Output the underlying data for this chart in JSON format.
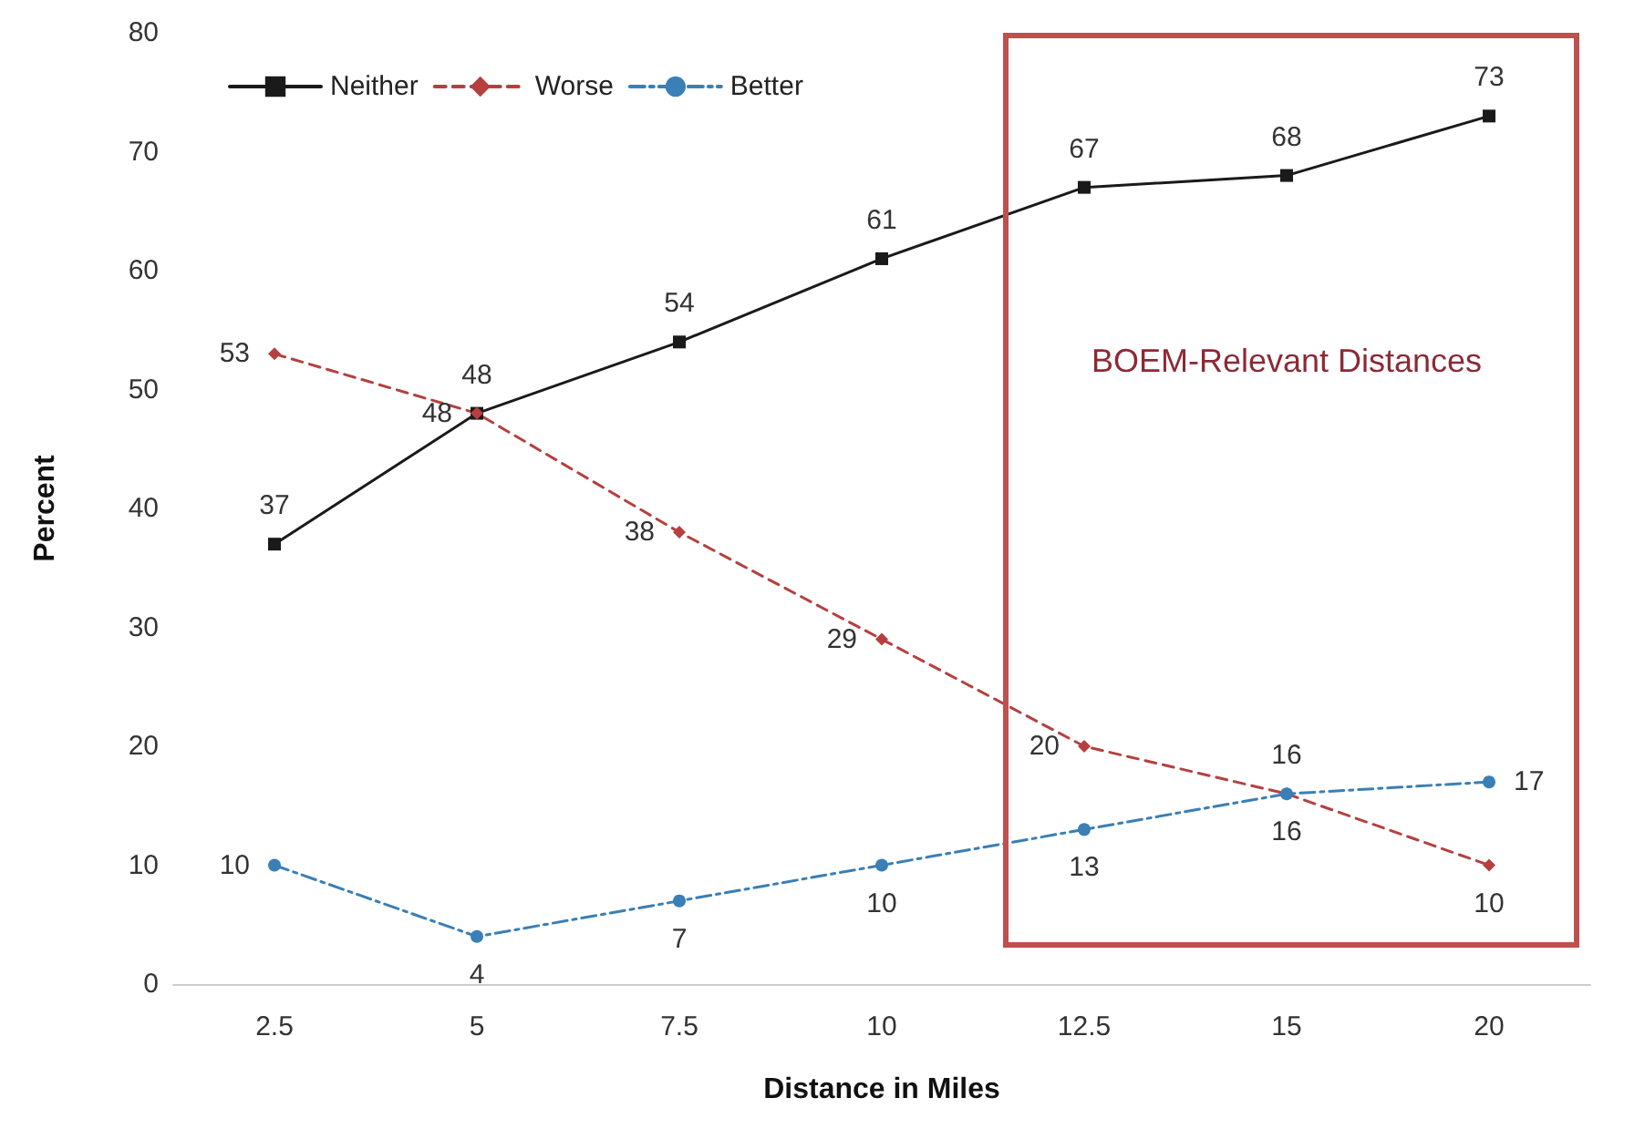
{
  "chart_data": {
    "type": "line",
    "xlabel": "Distance in Miles",
    "ylabel": "Percent",
    "categories": [
      "2.5",
      "5",
      "7.5",
      "10",
      "12.5",
      "15",
      "20"
    ],
    "series": [
      {
        "name": "Neither",
        "color": "#1a1a1a",
        "marker": "square",
        "line_style": "solid",
        "values": [
          37,
          48,
          54,
          61,
          67,
          68,
          73
        ]
      },
      {
        "name": "Worse",
        "color": "#b5403f",
        "marker": "diamond",
        "line_style": "dashed",
        "values": [
          53,
          48,
          38,
          29,
          20,
          16,
          10
        ]
      },
      {
        "name": "Better",
        "color": "#3a7fb5",
        "marker": "circle",
        "line_style": "dashdot",
        "values": [
          10,
          4,
          7,
          10,
          13,
          16,
          17
        ]
      }
    ],
    "ylim": [
      0,
      80
    ],
    "yticks": [
      0,
      10,
      20,
      30,
      40,
      50,
      60,
      70,
      80
    ],
    "annotations": [
      "BOEM-Relevant Distances"
    ],
    "data_labels": true,
    "legend": "top left",
    "grid": false
  }
}
